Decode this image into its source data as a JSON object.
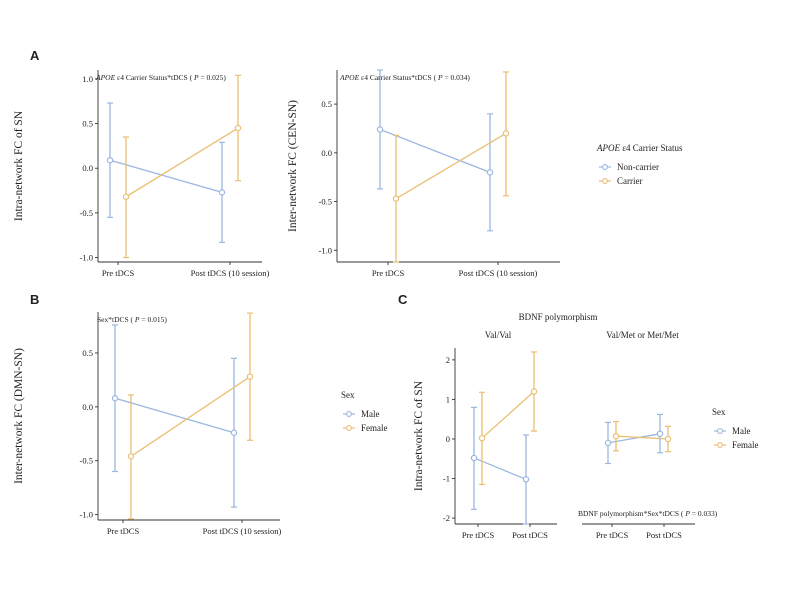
{
  "colors": {
    "group1": "#9bb7e0",
    "group2": "#e9bf73",
    "axis": "#333333"
  },
  "panels": [
    {
      "id": "A",
      "letter": "A",
      "charts": [
        {
          "key": "A1",
          "type": "line",
          "ylabel": "Intra-network FC of SN",
          "ann_italic": "APOE",
          "ann_rest": " ε4 Carrier Status*tDCS ( ",
          "ann_p": "P",
          "ann_end": " = 0.025)",
          "categories": [
            "Pre tDCS",
            "Post tDCS (10 session)"
          ],
          "yticks": [
            -1.0,
            -0.5,
            0.0,
            0.5,
            1.0
          ],
          "ytick_labels": [
            "-1.0",
            "-0.5",
            "0.0",
            "0.5",
            "1.0"
          ],
          "ylim": [
            -1.05,
            1.1
          ],
          "series": [
            {
              "name": "Non-carrier",
              "color": "group1",
              "values": [
                0.09,
                -0.27
              ],
              "lower": [
                -0.55,
                -0.83
              ],
              "upper": [
                0.73,
                0.29
              ]
            },
            {
              "name": "Carrier",
              "color": "group2",
              "values": [
                -0.32,
                0.45
              ],
              "lower": [
                -1.0,
                -0.14
              ],
              "upper": [
                0.35,
                1.04
              ]
            }
          ]
        },
        {
          "key": "A2",
          "type": "line",
          "ylabel": "Inter-network FC (CEN-SN)",
          "ann_italic": "APOE",
          "ann_rest": " ε4 Carrier Status*tDCS ( ",
          "ann_p": "P",
          "ann_end": " = 0.034)",
          "categories": [
            "Pre tDCS",
            "Post tDCS (10 session)"
          ],
          "yticks": [
            -1.0,
            -0.5,
            0.0,
            0.5
          ],
          "ytick_labels": [
            "-1.0",
            "-0.5",
            "0.0",
            "0.5"
          ],
          "ylim": [
            -1.12,
            0.85
          ],
          "series": [
            {
              "name": "Non-carrier",
              "color": "group1",
              "values": [
                0.24,
                -0.2
              ],
              "lower": [
                -0.37,
                -0.8
              ],
              "upper": [
                0.85,
                0.4
              ]
            },
            {
              "name": "Carrier",
              "color": "group2",
              "values": [
                -0.47,
                0.2
              ],
              "lower": [
                -1.12,
                -0.44
              ],
              "upper": [
                0.18,
                0.83
              ]
            }
          ]
        }
      ],
      "legend": {
        "title_italic": "APOE",
        "title_rest": " ε4 Carrier Status",
        "items": [
          "Non-carrier",
          "Carrier"
        ]
      }
    },
    {
      "id": "B",
      "letter": "B",
      "charts": [
        {
          "key": "B1",
          "type": "line",
          "ylabel": "Inter-network FC (DMN-SN)",
          "ann_italic": "",
          "ann_rest": "Sex*tDCS ( ",
          "ann_p": "P",
          "ann_end": " = 0.015)",
          "categories": [
            "Pre tDCS",
            "Post tDCS (10 session)"
          ],
          "yticks": [
            -1.0,
            -0.5,
            0.0,
            0.5
          ],
          "ytick_labels": [
            "-1.0",
            "-0.5",
            "0.0",
            "0.5"
          ],
          "ylim": [
            -1.05,
            0.88
          ],
          "series": [
            {
              "name": "Male",
              "color": "group1",
              "values": [
                0.08,
                -0.24
              ],
              "lower": [
                -0.6,
                -0.93
              ],
              "upper": [
                0.76,
                0.45
              ]
            },
            {
              "name": "Female",
              "color": "group2",
              "values": [
                -0.46,
                0.28
              ],
              "lower": [
                -1.04,
                -0.31
              ],
              "upper": [
                0.11,
                0.87
              ]
            }
          ]
        }
      ],
      "legend": {
        "title_italic": "",
        "title_rest": "Sex",
        "items": [
          "Male",
          "Female"
        ]
      }
    },
    {
      "id": "C",
      "letter": "C",
      "title": "BDNF polymorphism",
      "ylabel": "Intra-network FC of SN",
      "annotation": "BDNF polymorphism*Sex*tDCS ( ",
      "ann_p": "P",
      "ann_end": " = 0.033)",
      "yticks": [
        -2,
        -1,
        0,
        1,
        2
      ],
      "ytick_labels": [
        "-2",
        "-1",
        "0",
        "1",
        "2"
      ],
      "ylim": [
        -2.15,
        2.3
      ],
      "facets": [
        {
          "key": "C1",
          "label": "Val/Val",
          "categories": [
            "Pre tDCS",
            "Post tDCS"
          ],
          "series": [
            {
              "name": "Male",
              "color": "group1",
              "values": [
                -0.48,
                -1.02
              ],
              "lower": [
                -1.78,
                -2.15
              ],
              "upper": [
                0.8,
                0.1
              ]
            },
            {
              "name": "Female",
              "color": "group2",
              "values": [
                0.02,
                1.2
              ],
              "lower": [
                -1.15,
                0.2
              ],
              "upper": [
                1.18,
                2.2
              ]
            }
          ]
        },
        {
          "key": "C2",
          "label": "Val/Met or Met/Met",
          "categories": [
            "Pre tDCS",
            "Post tDCS"
          ],
          "series": [
            {
              "name": "Male",
              "color": "group1",
              "values": [
                -0.1,
                0.13
              ],
              "lower": [
                -0.62,
                -0.35
              ],
              "upper": [
                0.42,
                0.62
              ]
            },
            {
              "name": "Female",
              "color": "group2",
              "values": [
                0.07,
                0.0
              ],
              "lower": [
                -0.3,
                -0.32
              ],
              "upper": [
                0.44,
                0.32
              ]
            }
          ]
        }
      ],
      "legend": {
        "title_italic": "",
        "title_rest": "Sex",
        "items": [
          "Male",
          "Female"
        ]
      }
    }
  ]
}
